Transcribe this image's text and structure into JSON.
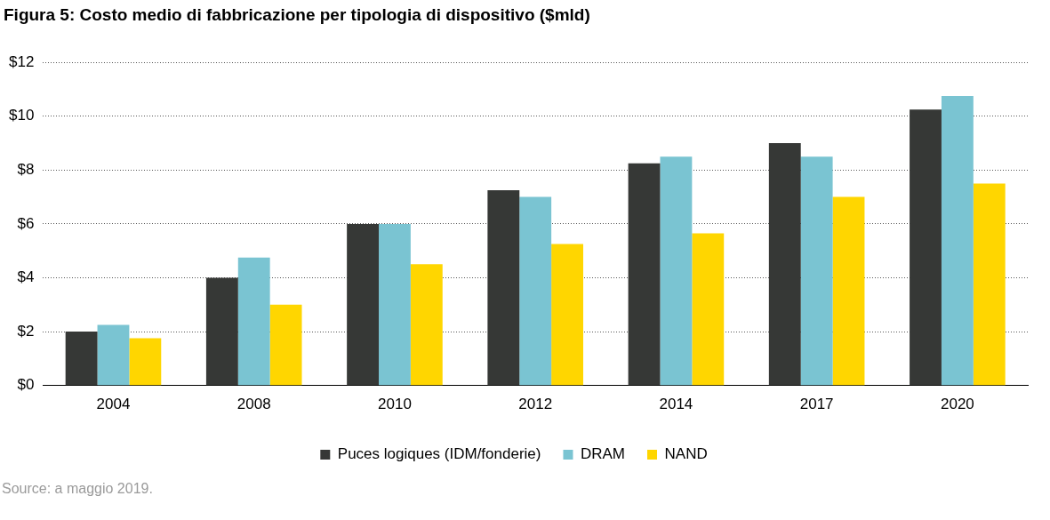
{
  "chart_data": {
    "type": "bar",
    "title": "Figura 5: Costo medio di fabbricazione per tipologia di dispositivo ($mld)",
    "categories": [
      "2004",
      "2008",
      "2010",
      "2012",
      "2014",
      "2017",
      "2020"
    ],
    "series": [
      {
        "name": "Puces logiques (IDM/fonderie)",
        "color": "#363836",
        "values": [
          2.0,
          4.0,
          6.0,
          7.25,
          8.25,
          9.0,
          10.25
        ]
      },
      {
        "name": "DRAM",
        "color": "#7ac4d2",
        "values": [
          2.25,
          4.75,
          6.0,
          7.0,
          8.5,
          8.5,
          10.75
        ]
      },
      {
        "name": "NAND",
        "color": "#ffd600",
        "values": [
          1.75,
          3.0,
          4.5,
          5.25,
          5.65,
          7.0,
          7.5
        ]
      }
    ],
    "ylim": [
      0,
      12
    ],
    "yticks": [
      {
        "value": 0,
        "label": "$0"
      },
      {
        "value": 2,
        "label": "$2"
      },
      {
        "value": 4,
        "label": "$4"
      },
      {
        "value": 6,
        "label": "$6"
      },
      {
        "value": 8,
        "label": "$8"
      },
      {
        "value": 10,
        "label": "$10"
      },
      {
        "value": 12,
        "label": "$12"
      }
    ],
    "grid": "y",
    "legend": "bottom",
    "annotations": [
      "Source: a maggio 2019."
    ]
  }
}
